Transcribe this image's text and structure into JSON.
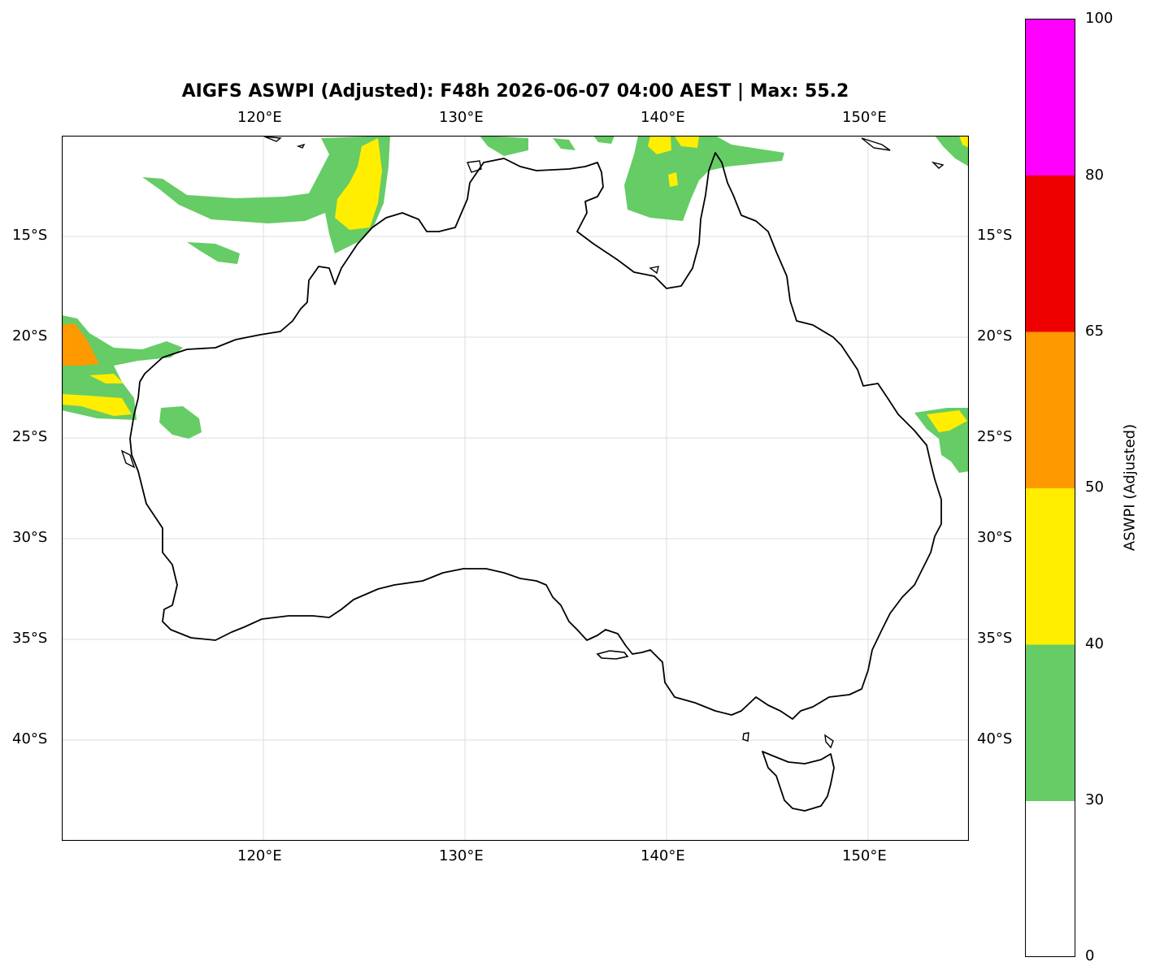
{
  "map": {
    "title": "AIGFS ASWPI (Adjusted): F48h 2026-06-07 04:00 AEST | Max: 55.2",
    "lon_ticks": [
      "120°E",
      "130°E",
      "140°E",
      "150°E"
    ],
    "lat_ticks": [
      "15°S",
      "20°S",
      "25°S",
      "30°S",
      "35°S",
      "40°S"
    ],
    "extent": {
      "lon_min": 110,
      "lon_max": 155,
      "lat_min": -45,
      "lat_max": -10
    },
    "gridlines": true
  },
  "colorbar": {
    "label": "ASWPI (Adjusted)",
    "bounds": [
      "0",
      "30",
      "40",
      "50",
      "65",
      "80",
      "100"
    ],
    "colors": [
      "#ffffff",
      "#66cc66",
      "#ffee00",
      "#ff9900",
      "#ee0000",
      "#ff00ff"
    ]
  },
  "colors": {
    "coast": "#000000",
    "grid": "#dddddd",
    "green": "#66cc66",
    "yellow": "#ffee00",
    "orange": "#ff9900"
  }
}
